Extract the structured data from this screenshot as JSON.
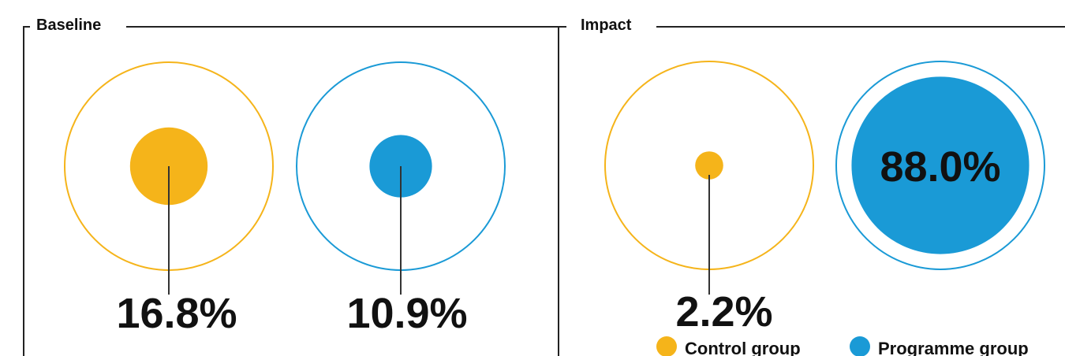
{
  "colors": {
    "control": "#f5b41a",
    "programme": "#1a9ad6",
    "ink": "#111111",
    "frame": "#222222"
  },
  "chart_data": {
    "type": "proportional-circles",
    "panels": [
      {
        "title": "Baseline",
        "values": [
          {
            "group": "Control group",
            "value": 16.8,
            "label": "16.8%"
          },
          {
            "group": "Programme group",
            "value": 10.9,
            "label": "10.9%"
          }
        ]
      },
      {
        "title": "Impact",
        "values": [
          {
            "group": "Control group",
            "value": 2.2,
            "label": "2.2%"
          },
          {
            "group": "Programme group",
            "value": 88.0,
            "label": "88.0%"
          }
        ]
      }
    ],
    "legend": {
      "placement": "bottom-right",
      "items": [
        {
          "label": "Control group",
          "color": "#f5b41a"
        },
        {
          "label": "Programme group",
          "color": "#1a9ad6"
        }
      ]
    }
  }
}
